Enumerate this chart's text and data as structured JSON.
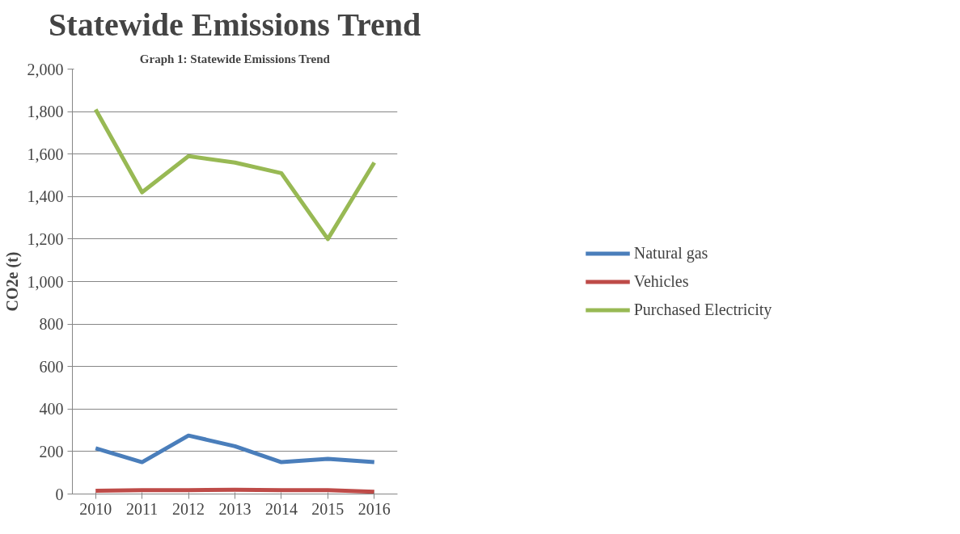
{
  "chart_data": {
    "type": "line",
    "title": "Statewide Emissions Trend",
    "ylabel": "CO2e (t)",
    "annotations": [
      "Graph 1: Statewide Emissions Trend"
    ],
    "categories": [
      "2010",
      "2011",
      "2012",
      "2013",
      "2014",
      "2015",
      "2016"
    ],
    "series": [
      {
        "name": "Natural gas",
        "color": "#4a7ebb",
        "values": [
          215,
          150,
          275,
          225,
          150,
          165,
          150
        ]
      },
      {
        "name": "Vehicles",
        "color": "#be4b48",
        "values": [
          15,
          18,
          18,
          20,
          18,
          18,
          10
        ]
      },
      {
        "name": "Purchased Electricity",
        "color": "#98b954",
        "values": [
          1810,
          1420,
          1590,
          1560,
          1510,
          1200,
          1560
        ]
      }
    ],
    "ylim": [
      0,
      2000
    ],
    "yticks": [
      {
        "value": 0,
        "label": "0"
      },
      {
        "value": 200,
        "label": "200"
      },
      {
        "value": 400,
        "label": "400"
      },
      {
        "value": 600,
        "label": "600"
      },
      {
        "value": 800,
        "label": "800"
      },
      {
        "value": 1000,
        "label": "1,000"
      },
      {
        "value": 1200,
        "label": "1,200"
      },
      {
        "value": 1400,
        "label": "1,400"
      },
      {
        "value": 1600,
        "label": "1,600"
      },
      {
        "value": 1800,
        "label": "1,800"
      },
      {
        "value": 2000,
        "label": "2,000"
      }
    ],
    "grid": "y",
    "legend": "right",
    "line_style": "solid"
  }
}
